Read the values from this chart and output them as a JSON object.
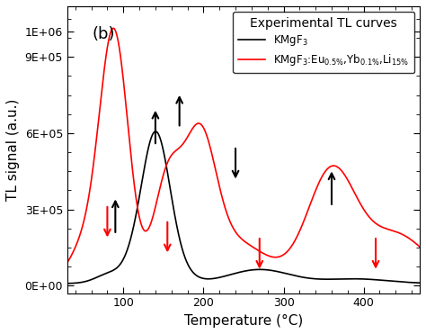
{
  "title": "Experimental TL curves",
  "xlabel": "Temperature (°C)",
  "ylabel": "TL signal (a.u.)",
  "label_b": "(b)",
  "legend_black": "KMgF$_3$",
  "legend_red": "KMgF$_3$:Eu$_{0.5\\%}$,Yb$_{0.1\\%}$,Li$_{15\\%}$",
  "xlim": [
    30,
    470
  ],
  "ylim": [
    -30000,
    1100000
  ],
  "ytick_vals": [
    0,
    300000,
    600000,
    900000,
    1000000
  ],
  "ytick_labels": [
    "0E+00",
    "3E+05",
    "6E+05",
    "9E+05",
    "1E+06"
  ],
  "xticks": [
    100,
    200,
    300,
    400
  ],
  "black_color": "#000000",
  "red_color": "#ff0000",
  "black_arrows_up": [
    [
      90,
      200000,
      350000
    ],
    [
      140,
      550000,
      700000
    ],
    [
      170,
      620000,
      760000
    ],
    [
      360,
      310000,
      460000
    ]
  ],
  "black_arrows_down": [
    [
      240,
      550000,
      410000
    ]
  ],
  "red_arrows_down": [
    [
      80,
      320000,
      180000
    ],
    [
      155,
      260000,
      120000
    ],
    [
      270,
      195000,
      55000
    ],
    [
      415,
      195000,
      55000
    ]
  ]
}
